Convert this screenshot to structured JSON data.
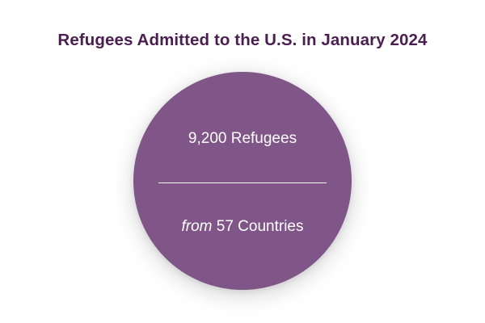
{
  "title": "Refugees Admitted to the U.S. in January 2024",
  "stat": {
    "refugees": "9,200 Refugees",
    "from_label": "from",
    "countries": "57 Countries"
  },
  "colors": {
    "title": "#4a1f4f",
    "circle": "#805588",
    "text": "#ffffff"
  }
}
